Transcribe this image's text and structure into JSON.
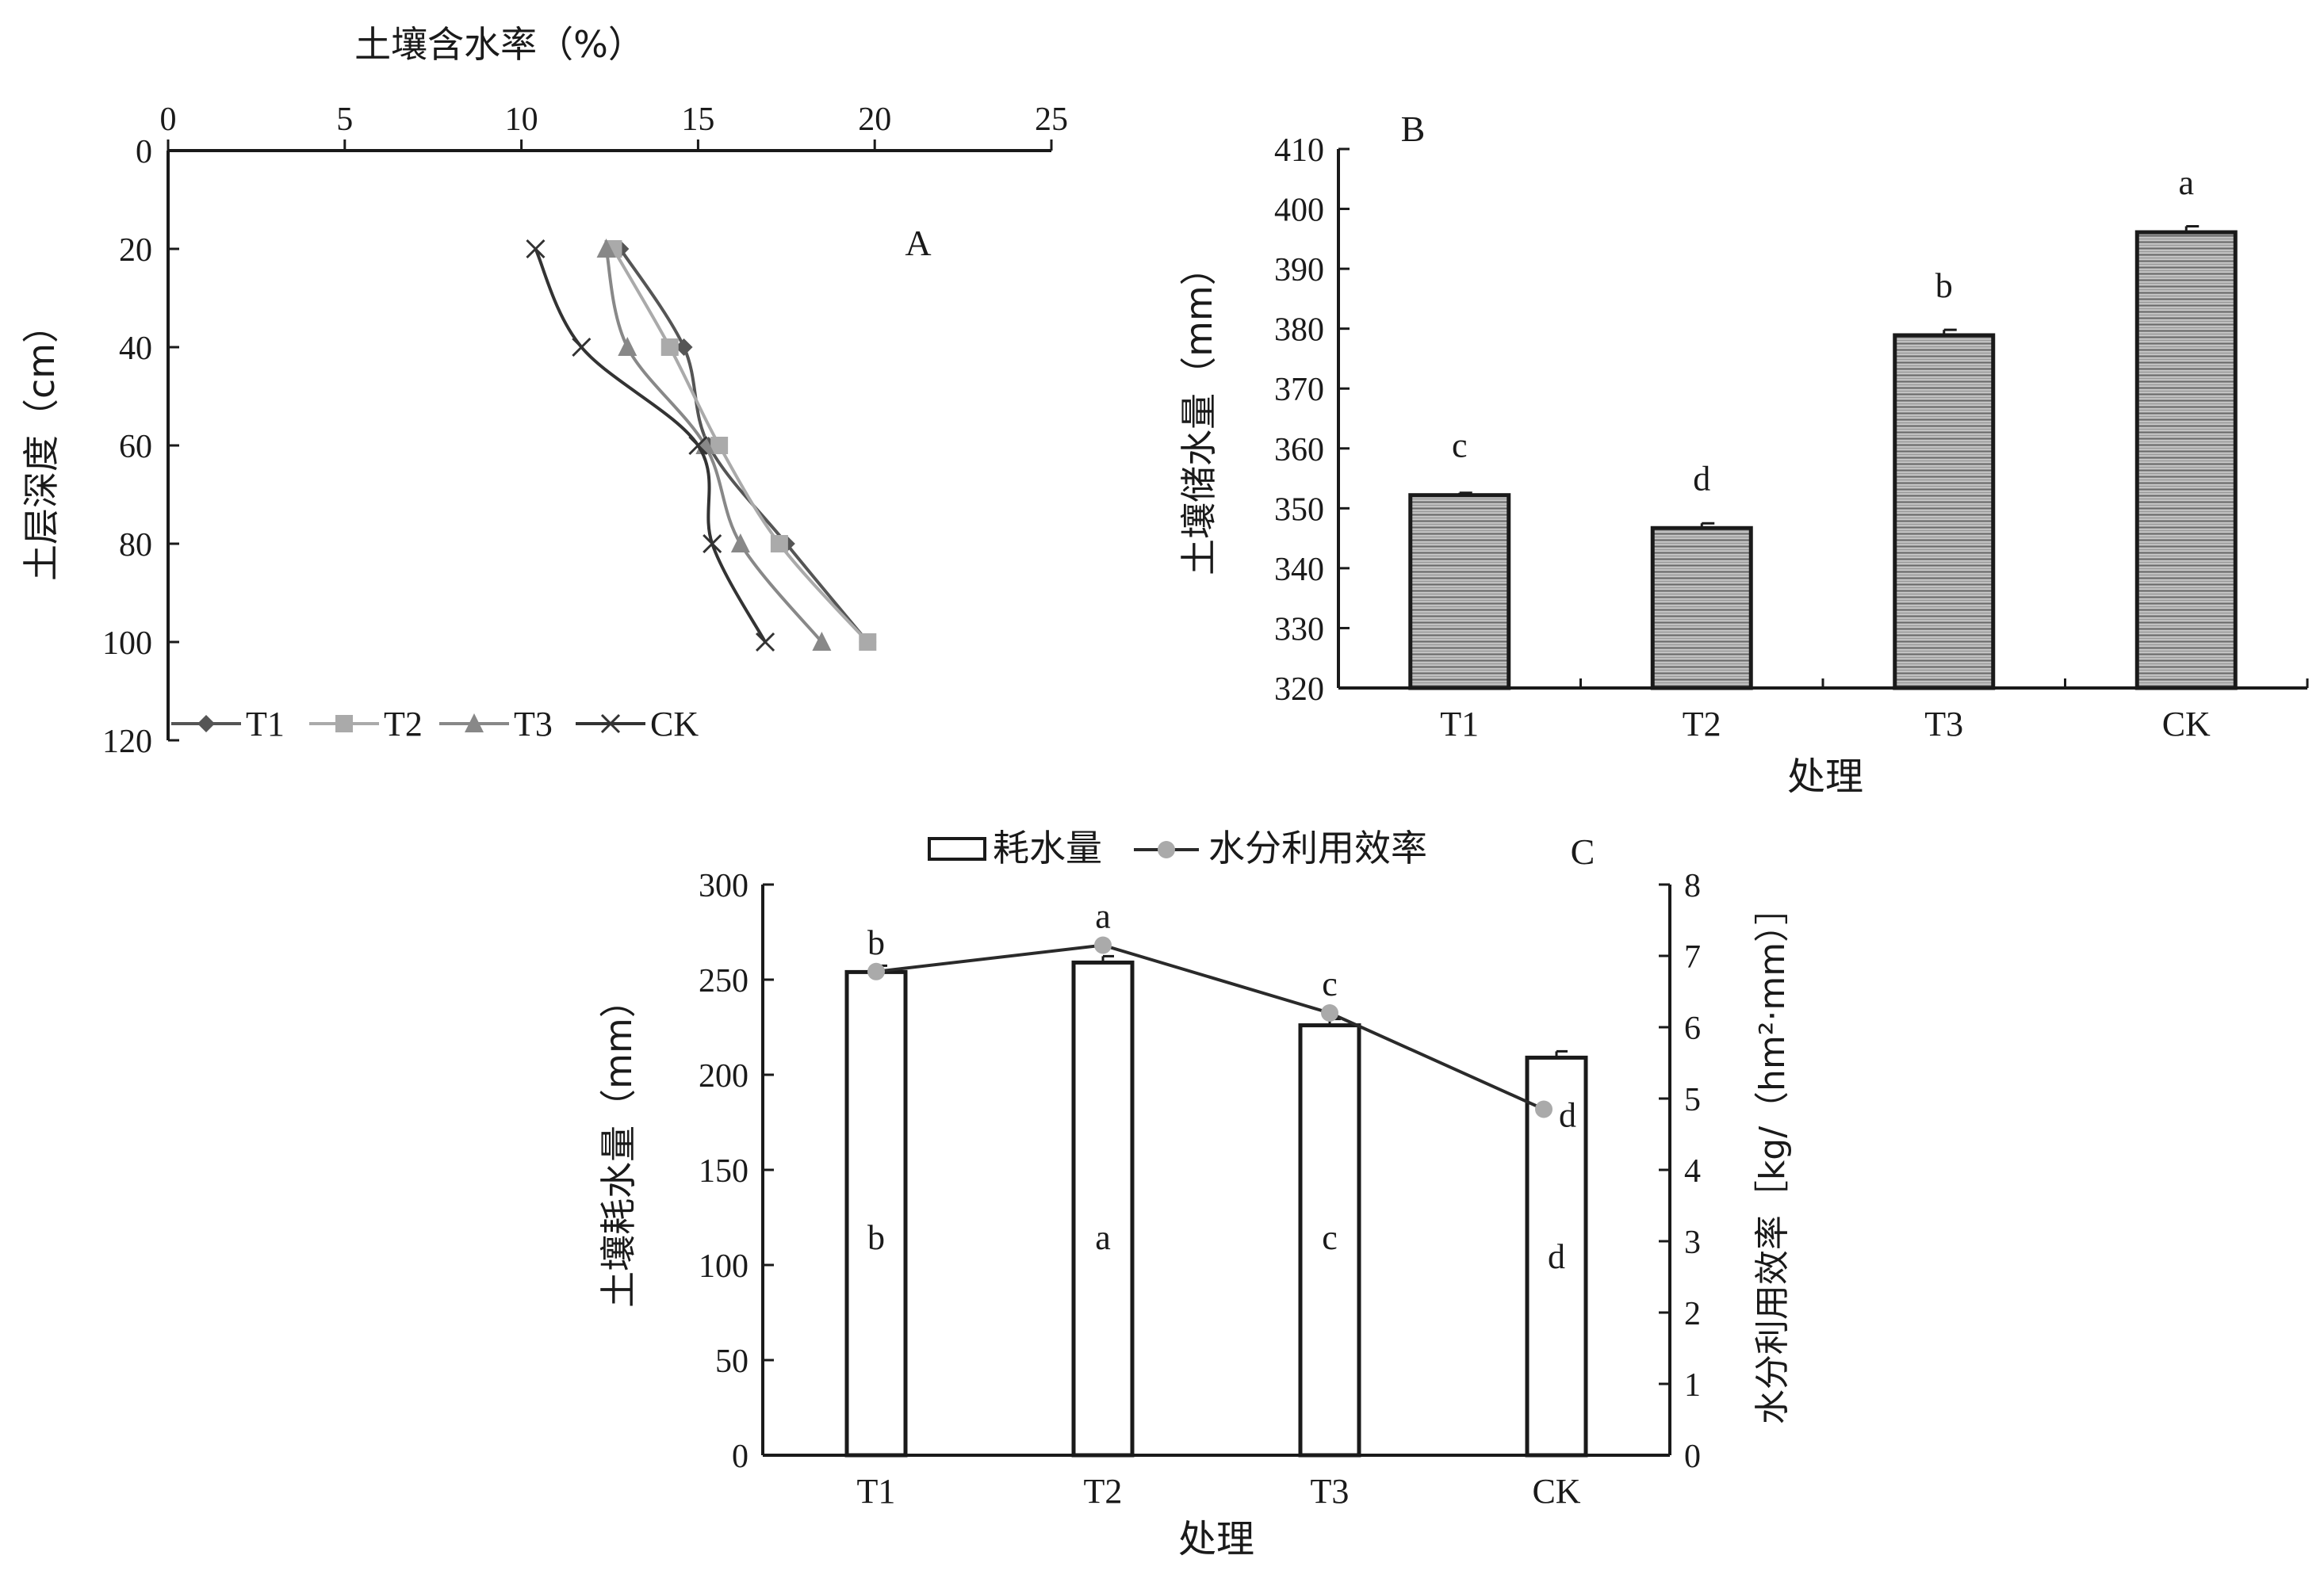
{
  "colors": {
    "ink": "#1a1a1a",
    "t1": "#555555",
    "t2": "#aaaaaa",
    "t3": "#888888",
    "ck": "#333333",
    "wue": "#aaaaaa"
  },
  "chart_data": [
    {
      "panel": "A",
      "type": "line",
      "title": "",
      "xlabel": "土壤含水率（%）",
      "ylabel": "土层深度（cm）",
      "xlim": [
        0,
        25
      ],
      "ylim": [
        0,
        120
      ],
      "y_inverted": true,
      "x_ticks": [
        0,
        5,
        10,
        15,
        20,
        25
      ],
      "y_ticks": [
        0,
        20,
        40,
        60,
        80,
        100,
        120
      ],
      "legend_position": "bottom",
      "depths": [
        20,
        40,
        60,
        80,
        100
      ],
      "series": [
        {
          "name": "T1",
          "marker": "diamond",
          "values": [
            12.8,
            14.6,
            15.3,
            17.5,
            19.8
          ]
        },
        {
          "name": "T2",
          "marker": "square",
          "values": [
            12.6,
            14.2,
            15.6,
            17.3,
            19.8
          ]
        },
        {
          "name": "T3",
          "marker": "triangle",
          "values": [
            12.4,
            13.0,
            15.2,
            16.2,
            18.5
          ]
        },
        {
          "name": "CK",
          "marker": "cross",
          "values": [
            10.4,
            11.7,
            15.0,
            15.4,
            16.9
          ]
        }
      ]
    },
    {
      "panel": "B",
      "type": "bar",
      "title": "",
      "xlabel": "处理",
      "ylabel": "土壤储水量（mm）",
      "categories": [
        "T1",
        "T2",
        "T3",
        "CK"
      ],
      "values": [
        352.2,
        346.7,
        378.9,
        396.1
      ],
      "errors": [
        0.4,
        0.8,
        0.9,
        1.0
      ],
      "letters": [
        "c",
        "d",
        "b",
        "a"
      ],
      "ylim": [
        320,
        410
      ],
      "y_ticks": [
        320,
        330,
        340,
        350,
        360,
        370,
        380,
        390,
        400,
        410
      ]
    },
    {
      "panel": "C",
      "type": "bar",
      "title": "",
      "xlabel": "处理",
      "ylabel": "土壤耗水量（mm）",
      "y2label": "水分利用效率［kg/（hm²·mm）］",
      "categories": [
        "T1",
        "T2",
        "T3",
        "CK"
      ],
      "legend_position": "top",
      "ylim": [
        0,
        300
      ],
      "y_ticks": [
        0,
        50,
        100,
        150,
        200,
        250,
        300
      ],
      "y2lim": [
        0,
        8
      ],
      "y2_ticks": [
        0,
        1,
        2,
        3,
        4,
        5,
        6,
        7,
        8
      ],
      "series": [
        {
          "name": "耗水量",
          "kind": "bar",
          "axis": "left",
          "values": [
            254,
            259,
            226,
            209
          ],
          "letters": [
            "b",
            "a",
            "c",
            "d"
          ]
        },
        {
          "name": "水分利用效率",
          "kind": "line",
          "axis": "right",
          "values": [
            6.78,
            7.15,
            6.2,
            4.85
          ],
          "letters": [
            "b",
            "a",
            "c",
            "d"
          ]
        }
      ]
    }
  ]
}
